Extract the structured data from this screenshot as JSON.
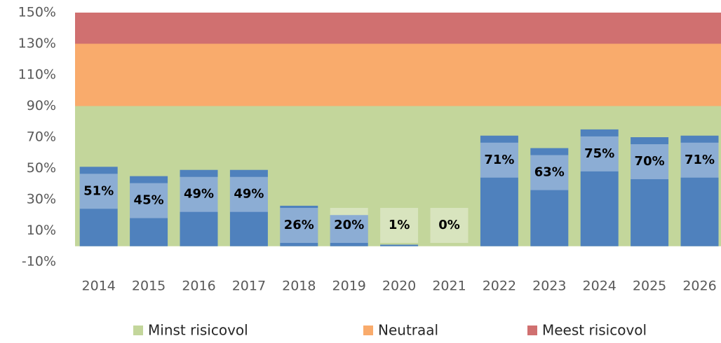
{
  "chart_data": {
    "type": "bar",
    "categories": [
      "2014",
      "2015",
      "2016",
      "2017",
      "2018",
      "2019",
      "2020",
      "2021",
      "2022",
      "2023",
      "2024",
      "2025",
      "2026"
    ],
    "values": [
      51,
      45,
      49,
      49,
      26,
      20,
      1,
      0,
      71,
      63,
      75,
      70,
      71
    ],
    "value_labels": [
      "51%",
      "45%",
      "49%",
      "49%",
      "26%",
      "20%",
      "1%",
      "0%",
      "71%",
      "63%",
      "75%",
      "70%",
      "71%"
    ],
    "color": "#4f81bd",
    "bands": [
      {
        "name": "Minst risicovol",
        "color": "#c3d69b",
        "value": 90
      },
      {
        "name": "Neutraal",
        "color": "#f9ab6c",
        "value": 40
      },
      {
        "name": "Meest risicovol",
        "color": "#d07070",
        "value": 20
      }
    ],
    "ylim": [
      -10,
      150
    ],
    "yticks": [
      {
        "value": -10,
        "label": "-10%"
      },
      {
        "value": 10,
        "label": "10%"
      },
      {
        "value": 30,
        "label": "30%"
      },
      {
        "value": 50,
        "label": "50%"
      },
      {
        "value": 70,
        "label": "70%"
      },
      {
        "value": 90,
        "label": "90%"
      },
      {
        "value": 110,
        "label": "110%"
      },
      {
        "value": 130,
        "label": "130%"
      },
      {
        "value": 150,
        "label": "150%"
      }
    ],
    "legend": "bottom"
  }
}
